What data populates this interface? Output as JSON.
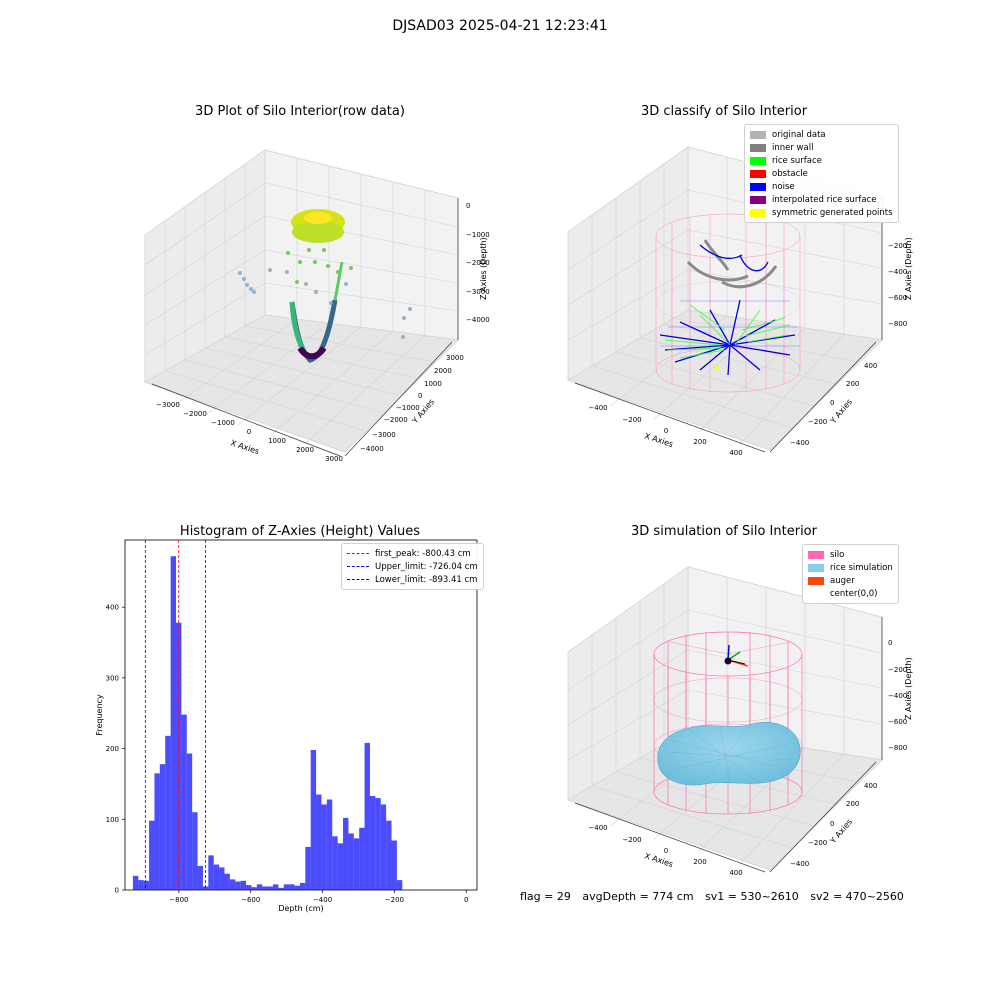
{
  "figure": {
    "suptitle": "DJSAD03 2025-04-21 12:23:41"
  },
  "panels": {
    "raw": {
      "title": "3D Plot of Silo Interior(row data)",
      "xlabel": "X Axies",
      "ylabel": "Y Axies",
      "zlabel": "Z Axies (Depth)",
      "xticks": [
        "−3000",
        "−2000",
        "−1000",
        "0",
        "1000",
        "2000",
        "3000"
      ],
      "yticks": [
        "−4000",
        "−3000",
        "−2000",
        "−1000",
        "0",
        "1000",
        "2000",
        "3000"
      ],
      "zticks": [
        "−4000",
        "−3000",
        "−2000",
        "−1000",
        "0"
      ]
    },
    "classify": {
      "title": "3D classify of Silo Interior",
      "xlabel": "X Axies",
      "ylabel": "Y Axies",
      "zlabel": "Z Axies (Depth)",
      "xticks": [
        "−400",
        "−200",
        "0",
        "200",
        "400"
      ],
      "yticks": [
        "−400",
        "−200",
        "0",
        "200",
        "400"
      ],
      "zticks": [
        "−800",
        "−600",
        "−400",
        "−200",
        "0"
      ],
      "legend": [
        {
          "label": "original data",
          "color": "#b3b3b3"
        },
        {
          "label": "inner wall",
          "color": "#808080"
        },
        {
          "label": "rice surface",
          "color": "#00ff00"
        },
        {
          "label": "obstacle",
          "color": "#ff0000"
        },
        {
          "label": "noise",
          "color": "#0000ff"
        },
        {
          "label": "interpolated rice surface",
          "color": "#800080"
        },
        {
          "label": "symmetric generated points",
          "color": "#ffff00"
        }
      ]
    },
    "simulation": {
      "title": "3D simulation of Silo Interior",
      "xlabel": "X Axies",
      "ylabel": "Y Axies",
      "zlabel": "Z Axies (Depth)",
      "xticks": [
        "−400",
        "−200",
        "0",
        "200",
        "400"
      ],
      "yticks": [
        "−400",
        "−200",
        "0",
        "200",
        "400"
      ],
      "zticks": [
        "−800",
        "−600",
        "−400",
        "−200",
        "0"
      ],
      "legend": [
        {
          "label": "silo",
          "color": "#ff69b4"
        },
        {
          "label": "rice simulation",
          "color": "#87ceeb"
        },
        {
          "label": "auger",
          "color": "#ff4500"
        },
        {
          "label": "center(0,0)",
          "color": "#ffffff"
        }
      ]
    }
  },
  "chart_data": {
    "type": "bar",
    "title": "Histogram of Z-Axies (Height) Values",
    "xlabel": "Depth (cm)",
    "ylabel": "Frequency",
    "xlim": [
      -950,
      30
    ],
    "ylim": [
      0,
      495
    ],
    "xticks": [
      -800,
      -600,
      -400,
      -200,
      0
    ],
    "yticks": [
      0,
      100,
      200,
      300,
      400
    ],
    "bar_color": "#0000ff",
    "bin_width": 15,
    "bin_starts": [
      -928,
      -913,
      -898,
      -883,
      -868,
      -853,
      -838,
      -823,
      -808,
      -793,
      -778,
      -763,
      -748,
      -733,
      -718,
      -703,
      -688,
      -673,
      -658,
      -643,
      -628,
      -613,
      -598,
      -583,
      -568,
      -553,
      -538,
      -523,
      -508,
      -493,
      -478,
      -463,
      -448,
      -433,
      -418,
      -403,
      -388,
      -373,
      -358,
      -343,
      -328,
      -313,
      -298,
      -283,
      -268,
      -253,
      -238,
      -223,
      -208,
      -193,
      -178,
      -163,
      -148,
      -133,
      -118,
      -103,
      -88,
      -73,
      -58,
      -43,
      -28,
      -13
    ],
    "values": [
      20,
      14,
      13,
      98,
      165,
      178,
      218,
      472,
      378,
      248,
      193,
      110,
      34,
      5,
      49,
      36,
      32,
      23,
      15,
      12,
      13,
      7,
      4,
      8,
      5,
      5,
      8,
      3,
      8,
      8,
      6,
      10,
      61,
      198,
      135,
      121,
      128,
      76,
      66,
      102,
      80,
      73,
      88,
      208,
      133,
      130,
      121,
      98,
      70,
      14,
      0,
      0,
      0,
      0,
      0,
      0,
      0,
      0,
      0,
      0,
      0,
      0
    ],
    "vlines": [
      {
        "name": "first_peak: -800.43 cm",
        "x": -800.43,
        "color": "#ff0000"
      },
      {
        "name": "Upper_limit: -726.04 cm",
        "x": -726.04,
        "color": "#0000ff"
      },
      {
        "name": "Lower_limit: -893.41 cm",
        "x": -893.41,
        "color": "#0000ff"
      }
    ],
    "legend": "upper right"
  },
  "status": {
    "flag": "flag = 29",
    "avg": "avgDepth = 774 cm",
    "sv1": "sv1 = 530~2610",
    "sv2": "sv2 = 470~2560"
  }
}
